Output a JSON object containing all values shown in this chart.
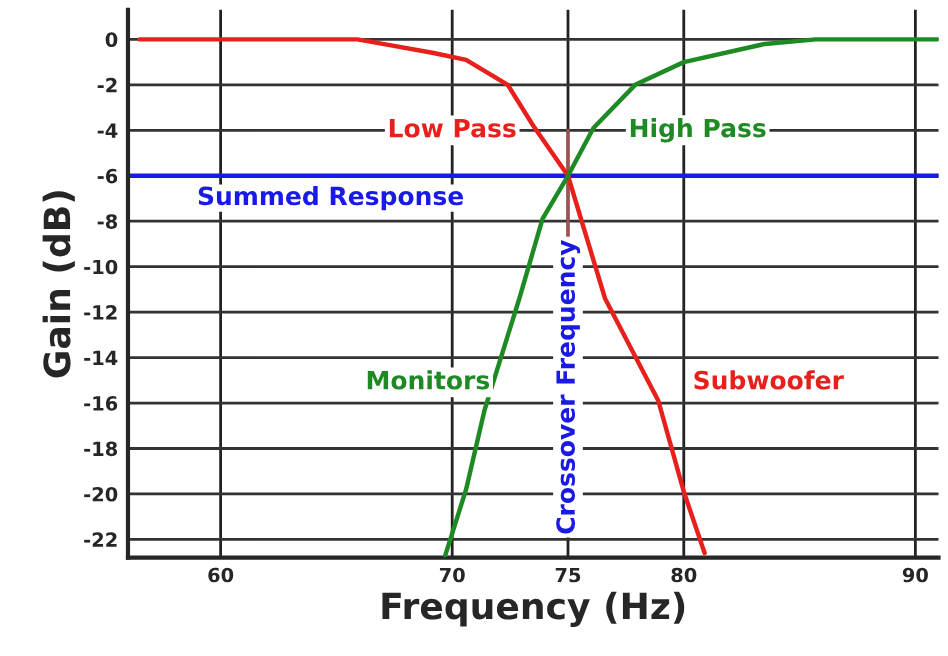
{
  "chart_data": {
    "type": "line",
    "xlabel": "Frequency (Hz)",
    "ylabel": "Gain (dB)",
    "x": [
      56.5,
      62,
      65.9,
      67,
      69.2,
      70.6,
      72.4,
      73.5,
      75,
      76.6,
      78.9,
      80,
      80.9
    ],
    "series": [
      {
        "name": "Low Pass",
        "color": "#e8201c",
        "values": [
          0,
          0,
          0,
          -0.2,
          -0.6,
          -0.9,
          -2,
          -3.8,
          -6,
          -11.4,
          -15.9,
          -19.9,
          -22.6
        ]
      },
      {
        "name": "High Pass",
        "color": "#1e8a23",
        "x": [
          69.7,
          70.6,
          71.4,
          72.9,
          73.9,
          75,
          76.1,
          77.9,
          80,
          83.5,
          85.7,
          91
        ],
        "values": [
          -22.7,
          -19.8,
          -16.3,
          -11.4,
          -7.9,
          -6,
          -3.9,
          -2,
          -1,
          -0.2,
          0,
          0
        ]
      }
    ],
    "ref_lines": [
      {
        "axis": "y",
        "value": -6,
        "label": "Summed Response",
        "color": "#1a1ae6"
      },
      {
        "axis": "x",
        "value": 75,
        "label": "Crossover Frequency",
        "color": "#a05050"
      }
    ],
    "annotations": [
      "Monitors",
      "Subwoofer"
    ],
    "xlim": [
      56,
      91
    ],
    "xticks": [
      60,
      70,
      75,
      80,
      90
    ],
    "ylim": [
      -22.8,
      1.3
    ],
    "yticks": [
      0,
      -2,
      -4,
      -6,
      -8,
      -10,
      -12,
      -14,
      -16,
      -18,
      -20,
      -22
    ],
    "grid": true,
    "legend": false,
    "line_style": "solid",
    "marker": "none"
  }
}
